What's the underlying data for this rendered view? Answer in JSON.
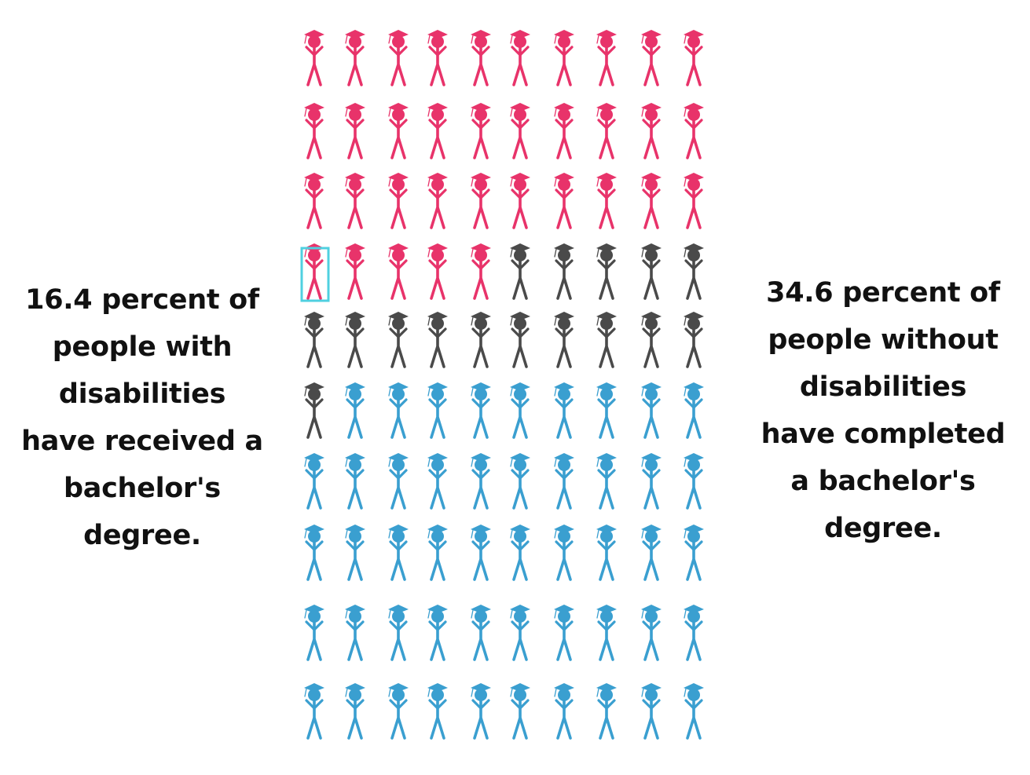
{
  "texts": {
    "left": "16.4 percent of people with disabilities have received a bachelor's degree.",
    "right": "34.6 percent of people without disabilities have completed a bachelor's degree."
  },
  "colors": {
    "pink": "#e8336a",
    "gray": "#4a4a4a",
    "blue": "#3a9fd0",
    "highlight": "#4fd0e0",
    "text": "#111111"
  },
  "chart_data": {
    "type": "pictograph",
    "icon": "graduate-person-icon",
    "total_icons": 100,
    "grid": {
      "rows": 10,
      "columns": 10
    },
    "segments": [
      {
        "color": "pink",
        "count": 35
      },
      {
        "color": "gray",
        "count": 16
      },
      {
        "color": "blue",
        "count": 49
      }
    ],
    "highlighted_index": 30,
    "values": [
      34.6,
      16.4
    ]
  }
}
